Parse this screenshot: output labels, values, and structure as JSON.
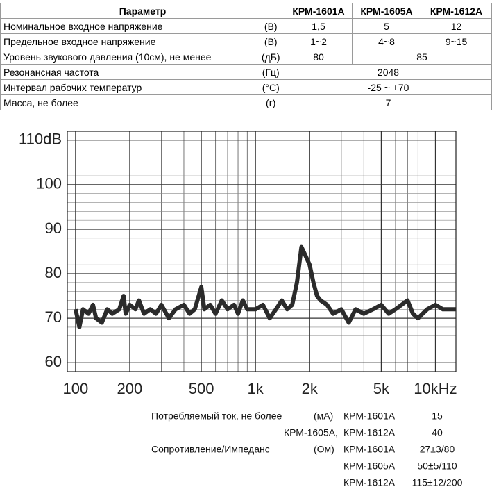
{
  "table": {
    "header": [
      "Параметр",
      "КРМ-1601А",
      "КРМ-1605А",
      "КРМ-1612А"
    ],
    "rows": [
      [
        "Номинальное входное напряжение",
        "(В)",
        "1,5",
        "5",
        "12"
      ],
      [
        "Предельное входное напряжение",
        "(В)",
        "1~2",
        "4~8",
        "9~15"
      ],
      [
        "Уровень звукового давления (10см), не менее",
        "(дБ)",
        "80",
        "85"
      ],
      [
        "Резонансная частота",
        "(Гц)",
        "2048"
      ],
      [
        "Интервал рабочих температур",
        "(°C)",
        "-25 ~ +70"
      ],
      [
        "Масса, не более",
        "(г)",
        "7"
      ]
    ]
  },
  "chart_data": {
    "type": "line",
    "x": [
      100,
      105,
      110,
      118,
      125,
      130,
      140,
      150,
      160,
      175,
      185,
      190,
      200,
      215,
      225,
      240,
      260,
      280,
      300,
      330,
      360,
      400,
      430,
      460,
      500,
      520,
      560,
      600,
      650,
      700,
      760,
      800,
      850,
      900,
      1000,
      1100,
      1200,
      1300,
      1400,
      1500,
      1600,
      1700,
      1800,
      1900,
      2000,
      2100,
      2200,
      2300,
      2500,
      2700,
      3000,
      3300,
      3600,
      4000,
      4500,
      5000,
      5500,
      6000,
      7000,
      7500,
      8000,
      9000,
      10000,
      11000,
      12000,
      13000
    ],
    "series": [
      {
        "color": "#2b2b2b",
        "values": [
          72,
          68,
          72,
          71,
          73,
          70,
          69,
          72,
          71,
          72,
          75,
          71,
          73,
          72,
          74,
          71,
          72,
          71,
          73,
          70,
          72,
          73,
          71,
          72,
          77,
          72,
          73,
          71,
          74,
          72,
          73,
          71,
          74,
          72,
          72,
          73,
          70,
          72,
          74,
          72,
          73,
          78,
          86,
          84,
          82,
          78,
          75,
          74,
          73,
          71,
          72,
          69,
          72,
          71,
          72,
          73,
          71,
          72,
          74,
          71,
          70,
          72,
          73,
          72,
          72,
          72
        ]
      }
    ],
    "xlim": [
      90,
      13000
    ],
    "log_x": true,
    "xticks": [
      100,
      200,
      500,
      {
        "value": 1000,
        "label": "1k"
      },
      {
        "value": 2000,
        "label": "2k"
      },
      {
        "value": 5000,
        "label": "5k"
      },
      {
        "value": 10000,
        "label": "10kHz"
      }
    ],
    "ylim": [
      58,
      112
    ],
    "yticks": [
      60,
      70,
      80,
      90,
      100,
      {
        "value": 110,
        "label": "110dB"
      }
    ],
    "grid": true
  },
  "specs": [
    {
      "label": "Потребляемый ток, не более",
      "unit": "(мА)",
      "model": "КРМ-1601А",
      "value": "15"
    },
    {
      "label": "КРМ-1605А,",
      "model": "КРМ-1612А",
      "value": "40"
    },
    {
      "label": "Сопротивление/Импеданс",
      "unit": "(Ом)",
      "model": "КРМ-1601А",
      "value": "27±3/80"
    },
    {
      "model": "КРМ-1605А",
      "value": "50±5/110"
    },
    {
      "model": "КРМ-1612А",
      "value": "115±12/200"
    }
  ]
}
